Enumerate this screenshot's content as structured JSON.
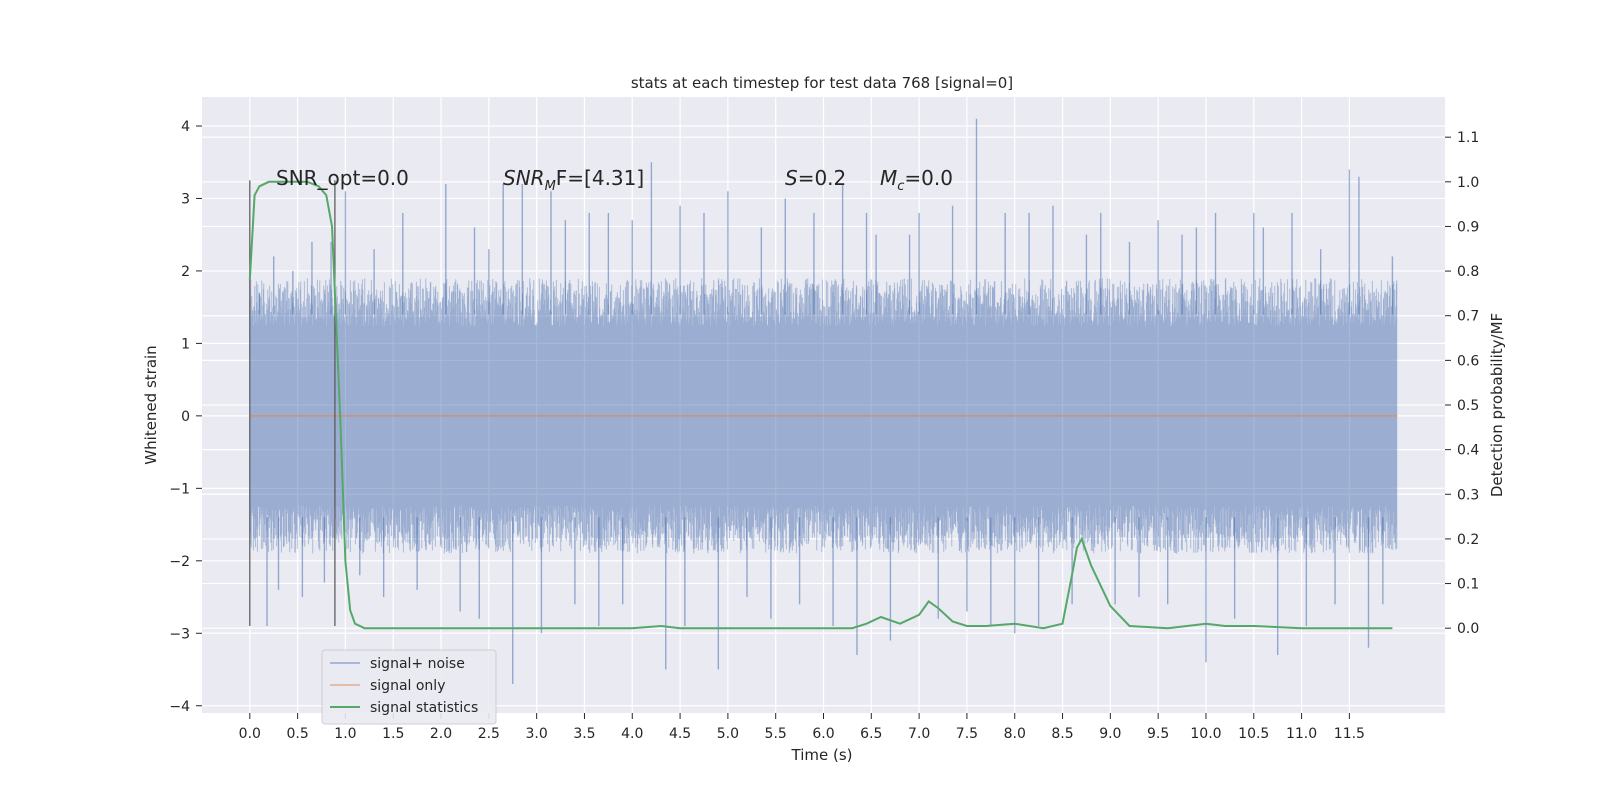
{
  "chart_data": {
    "type": "line",
    "title": "stats at each timestep for test data 768 [signal=0]",
    "xlabel": "Time (s)",
    "ylabel": "Whitened strain",
    "y2label": "Detection probability/MF",
    "xlim": [
      -0.5,
      12.5
    ],
    "ylim": [
      -4.1,
      4.4
    ],
    "y2lim": [
      -0.19,
      1.19
    ],
    "xticks": [
      0.0,
      0.5,
      1.0,
      1.5,
      2.0,
      2.5,
      3.0,
      3.5,
      4.0,
      4.5,
      5.0,
      5.5,
      6.0,
      6.5,
      7.0,
      7.5,
      8.0,
      8.5,
      9.0,
      9.5,
      10.0,
      10.5,
      11.0,
      11.5
    ],
    "xtick_labels": [
      "0.0",
      "0.5",
      "1.0",
      "1.5",
      "2.0",
      "2.5",
      "3.0",
      "3.5",
      "4.0",
      "4.5",
      "5.0",
      "5.5",
      "6.0",
      "6.5",
      "7.0",
      "7.5",
      "8.0",
      "8.5",
      "9.0",
      "9.5",
      "10.0",
      "10.5",
      "11.0",
      "11.5"
    ],
    "yticks": [
      -4,
      -3,
      -2,
      -1,
      0,
      1,
      2,
      3,
      4
    ],
    "ytick_labels": [
      "−4",
      "−3",
      "−2",
      "−1",
      "0",
      "1",
      "2",
      "3",
      "4"
    ],
    "y2ticks": [
      0.0,
      0.1,
      0.2,
      0.3,
      0.4,
      0.5,
      0.6,
      0.7,
      0.8,
      0.9,
      1.0,
      1.1
    ],
    "y2tick_labels": [
      "0.0",
      "0.1",
      "0.2",
      "0.3",
      "0.4",
      "0.5",
      "0.6",
      "0.7",
      "0.8",
      "0.9",
      "1.0",
      "1.1"
    ],
    "grid": true,
    "legend_position": "lower-left",
    "legend": [
      "signal+ noise",
      "signal only",
      "signal statistics"
    ],
    "annotations": {
      "snr_opt": "SNR_opt=0.0",
      "snr_mf_main": "SNR",
      "snr_mf_sub": "M",
      "snr_mf_rest": "F=[4.31]",
      "s_main": "S",
      "s_rest": "=0.2",
      "mc_main": "M",
      "mc_sub": "c",
      "mc_rest": "=0.0"
    },
    "vertical_markers_x": [
      0.0,
      0.89
    ],
    "vertical_markers_range": [
      -2.9,
      3.25
    ],
    "series": [
      {
        "color": "#4c72b0",
        "axis": "left",
        "x_range": [
          0.0,
          12.0
        ],
        "band_typical": [
          -1.9,
          1.9
        ],
        "spikes": [
          [
            0.1,
            1.7
          ],
          [
            0.18,
            -2.9
          ],
          [
            0.25,
            2.2
          ],
          [
            0.3,
            -2.4
          ],
          [
            0.45,
            2.0
          ],
          [
            0.55,
            -2.5
          ],
          [
            0.65,
            2.4
          ],
          [
            0.78,
            -2.3
          ],
          [
            0.85,
            2.4
          ],
          [
            1.0,
            3.1
          ],
          [
            1.15,
            -2.2
          ],
          [
            1.3,
            2.3
          ],
          [
            1.4,
            -2.5
          ],
          [
            1.6,
            2.8
          ],
          [
            1.75,
            -2.4
          ],
          [
            2.05,
            3.2
          ],
          [
            2.2,
            -2.7
          ],
          [
            2.35,
            2.6
          ],
          [
            2.4,
            -2.8
          ],
          [
            2.5,
            2.3
          ],
          [
            2.65,
            3.2
          ],
          [
            2.75,
            -3.7
          ],
          [
            2.85,
            3.2
          ],
          [
            3.05,
            -3.0
          ],
          [
            3.15,
            3.1
          ],
          [
            3.3,
            2.7
          ],
          [
            3.4,
            -2.6
          ],
          [
            3.55,
            2.8
          ],
          [
            3.65,
            -2.9
          ],
          [
            3.75,
            2.8
          ],
          [
            3.9,
            -2.6
          ],
          [
            4.0,
            2.7
          ],
          [
            4.2,
            3.5
          ],
          [
            4.35,
            -3.5
          ],
          [
            4.5,
            2.9
          ],
          [
            4.55,
            -2.9
          ],
          [
            4.75,
            2.8
          ],
          [
            4.9,
            -3.5
          ],
          [
            5.0,
            3.1
          ],
          [
            5.2,
            -2.5
          ],
          [
            5.35,
            2.6
          ],
          [
            5.45,
            -2.8
          ],
          [
            5.6,
            3.0
          ],
          [
            5.75,
            -2.6
          ],
          [
            5.9,
            2.8
          ],
          [
            6.1,
            -2.9
          ],
          [
            6.2,
            3.2
          ],
          [
            6.35,
            -3.3
          ],
          [
            6.45,
            2.8
          ],
          [
            6.55,
            2.5
          ],
          [
            6.7,
            -3.1
          ],
          [
            6.9,
            2.5
          ],
          [
            7.0,
            2.8
          ],
          [
            7.2,
            -2.8
          ],
          [
            7.35,
            2.9
          ],
          [
            7.5,
            -2.7
          ],
          [
            7.6,
            4.1
          ],
          [
            7.75,
            -2.9
          ],
          [
            7.9,
            2.8
          ],
          [
            8.0,
            -3.0
          ],
          [
            8.15,
            2.8
          ],
          [
            8.25,
            -2.9
          ],
          [
            8.4,
            2.9
          ],
          [
            8.6,
            -2.6
          ],
          [
            8.75,
            2.5
          ],
          [
            8.9,
            2.8
          ],
          [
            9.05,
            -2.6
          ],
          [
            9.2,
            2.4
          ],
          [
            9.3,
            -2.5
          ],
          [
            9.5,
            2.7
          ],
          [
            9.6,
            -2.6
          ],
          [
            9.75,
            2.5
          ],
          [
            9.9,
            2.6
          ],
          [
            10.0,
            -3.4
          ],
          [
            10.1,
            2.8
          ],
          [
            10.3,
            -2.8
          ],
          [
            10.5,
            2.8
          ],
          [
            10.6,
            2.6
          ],
          [
            10.75,
            -3.3
          ],
          [
            10.9,
            2.8
          ],
          [
            11.05,
            -2.9
          ],
          [
            11.2,
            2.3
          ],
          [
            11.35,
            -2.6
          ],
          [
            11.5,
            3.4
          ],
          [
            11.6,
            3.3
          ],
          [
            11.7,
            -3.2
          ],
          [
            11.85,
            -2.6
          ],
          [
            11.95,
            2.2
          ]
        ]
      },
      {
        "color": "#dd8452",
        "axis": "left",
        "x": [
          0.0,
          12.0
        ],
        "y": [
          0.0,
          0.0
        ]
      },
      {
        "color": "#55a868",
        "axis": "right",
        "x": [
          0.0,
          0.05,
          0.1,
          0.2,
          0.3,
          0.5,
          0.6,
          0.72,
          0.8,
          0.86,
          0.9,
          0.95,
          1.0,
          1.05,
          1.1,
          1.2,
          1.5,
          2.0,
          3.0,
          4.0,
          4.3,
          4.5,
          5.0,
          6.0,
          6.3,
          6.45,
          6.6,
          6.8,
          7.0,
          7.1,
          7.2,
          7.35,
          7.5,
          7.7,
          8.0,
          8.3,
          8.5,
          8.6,
          8.65,
          8.7,
          8.8,
          9.0,
          9.2,
          9.6,
          10.0,
          10.2,
          10.5,
          11.0,
          11.95
        ],
        "y": [
          0.78,
          0.97,
          0.99,
          1.0,
          1.0,
          1.0,
          1.0,
          0.99,
          0.97,
          0.9,
          0.7,
          0.45,
          0.15,
          0.04,
          0.01,
          0.0,
          0.0,
          0.0,
          0.0,
          0.0,
          0.005,
          0.0,
          0.0,
          0.0,
          0.0,
          0.01,
          0.025,
          0.01,
          0.03,
          0.06,
          0.045,
          0.015,
          0.005,
          0.005,
          0.01,
          0.0,
          0.01,
          0.12,
          0.18,
          0.2,
          0.14,
          0.05,
          0.005,
          0.0,
          0.01,
          0.005,
          0.005,
          0.0,
          0.0
        ]
      }
    ]
  }
}
